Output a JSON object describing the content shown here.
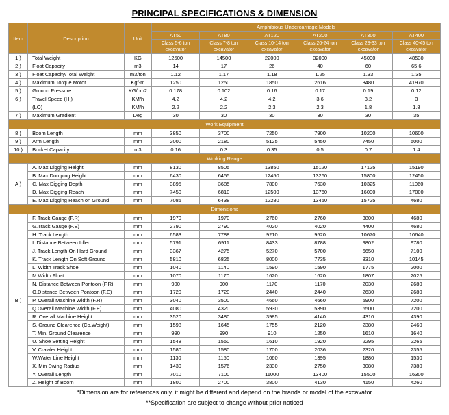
{
  "title": "PRINCIPAL SPECIFICATIONS & DIMENSION",
  "headers": {
    "item": "Item",
    "desc": "Description",
    "unit": "Unit",
    "main": "Amphibious Undercarriage Models",
    "models": [
      "AT50",
      "AT80",
      "AT120",
      "AT200",
      "AT300",
      "AT400"
    ],
    "sub": [
      "Class 5-6 ton excavator",
      "Class 7-8 ton excavator",
      "Class 10-14 ton excavator",
      "Class 20-24 ton excavator",
      "Class 28-33 ton excavator",
      "Class 40-45 ton excavator"
    ]
  },
  "secWork": "Work Equipment",
  "secRange": "Working Range",
  "secDim": "Dimensions",
  "rows1": [
    {
      "n": "1 )",
      "d": "Total Weight",
      "u": "KG",
      "v": [
        "12500",
        "14500",
        "22000",
        "32000",
        "45000",
        "48530"
      ]
    },
    {
      "n": "2 )",
      "d": "Float Capacity",
      "u": "m3",
      "v": [
        "14",
        "17",
        "26",
        "40",
        "60",
        "65.6"
      ]
    },
    {
      "n": "3 )",
      "d": "Float Capacity/Total Weight",
      "u": "m3/ton",
      "v": [
        "1.12",
        "1.17",
        "1.18",
        "1.25",
        "1.33",
        "1.35"
      ]
    },
    {
      "n": "4 )",
      "d": "Maximum Torque Motor",
      "u": "Kgf-m",
      "v": [
        "1250",
        "1250",
        "1850",
        "2616",
        "3480",
        "41970"
      ]
    },
    {
      "n": "5 )",
      "d": "Ground Pressure",
      "u": "KG/cm2",
      "v": [
        "0.178",
        "0.102",
        "0.16",
        "0.17",
        "0.19",
        "0.12"
      ]
    },
    {
      "n": "6 )",
      "d": "Travel Speed (HI)",
      "u": "KM/h",
      "v": [
        "4.2",
        "4.2",
        "4.2",
        "3.6",
        "3.2",
        "3"
      ]
    },
    {
      "n": "",
      "d": "(LO)",
      "u": "KM/h",
      "v": [
        "2.2",
        "2.2",
        "2.3",
        "2.3",
        "1.8",
        "1.8"
      ]
    },
    {
      "n": "7 )",
      "d": "Maximum Gradient",
      "u": "Deg",
      "v": [
        "30",
        "30",
        "30",
        "30",
        "30",
        "35"
      ]
    }
  ],
  "rows2": [
    {
      "n": "8 )",
      "d": "Boom Length",
      "u": "mm",
      "v": [
        "3850",
        "3700",
        "7250",
        "7900",
        "10200",
        "10600"
      ]
    },
    {
      "n": "9 )",
      "d": "Arm Length",
      "u": "mm",
      "v": [
        "2000",
        "2180",
        "5125",
        "5450",
        "7450",
        "5000"
      ]
    },
    {
      "n": "10 )",
      "d": "Bucket Capacity",
      "u": "m3",
      "v": [
        "0.16",
        "0.3",
        "0.35",
        "0.5",
        "0.7",
        "1.4"
      ]
    }
  ],
  "rowsA": [
    {
      "d": "A. Max Digging Height",
      "u": "mm",
      "v": [
        "8130",
        "8505",
        "13850",
        "15120",
        "17125",
        "15190"
      ]
    },
    {
      "d": "B. Max Dumping Height",
      "u": "mm",
      "v": [
        "6430",
        "6455",
        "12450",
        "13260",
        "15800",
        "12450"
      ]
    },
    {
      "d": "C. Max Digging Depth",
      "u": "mm",
      "v": [
        "3895",
        "3685",
        "7800",
        "7630",
        "10325",
        "11060"
      ]
    },
    {
      "d": "D. Max Digging Reach",
      "u": "mm",
      "v": [
        "7450",
        "6810",
        "12500",
        "13760",
        "16000",
        "17000"
      ]
    },
    {
      "d": "E. Max Digging Reach on Ground",
      "u": "mm",
      "v": [
        "7085",
        "6438",
        "12280",
        "13450",
        "15725",
        "4680"
      ]
    }
  ],
  "rowsB": [
    {
      "d": "F. Track Gauge (F.R)",
      "u": "mm",
      "v": [
        "1970",
        "1970",
        "2760",
        "2760",
        "3800",
        "4680"
      ]
    },
    {
      "d": "G.Track Gauge (F.E)",
      "u": "mm",
      "v": [
        "2790",
        "2790",
        "4020",
        "4020",
        "4400",
        "4680"
      ]
    },
    {
      "d": "H. Track Length",
      "u": "mm",
      "v": [
        "6583",
        "7788",
        "9210",
        "9520",
        "10670",
        "10640"
      ]
    },
    {
      "d": "I. Distance Between Idler",
      "u": "mm",
      "v": [
        "5791",
        "6911",
        "8433",
        "8788",
        "9802",
        "9780"
      ]
    },
    {
      "d": "J. Track Length On Hard Ground",
      "u": "mm",
      "v": [
        "3367",
        "4275",
        "5270",
        "5700",
        "6650",
        "7100"
      ]
    },
    {
      "d": "K. Track Length On Soft Ground",
      "u": "mm",
      "v": [
        "5810",
        "6825",
        "8000",
        "7735",
        "8310",
        "10145"
      ]
    },
    {
      "d": "L. Width Track Shoe",
      "u": "mm",
      "v": [
        "1040",
        "1140",
        "1590",
        "1590",
        "1775",
        "2000"
      ]
    },
    {
      "d": "M.Width Float",
      "u": "mm",
      "v": [
        "1070",
        "1170",
        "1620",
        "1620",
        "1807",
        "2025"
      ]
    },
    {
      "d": "N. Distance Between Pontoon (F.R)",
      "u": "mm",
      "v": [
        "900",
        "900",
        "1170",
        "1170",
        "2030",
        "2680"
      ]
    },
    {
      "d": "O.Distance Between Pontoon (F.E)",
      "u": "mm",
      "v": [
        "1720",
        "1720",
        "2440",
        "2440",
        "2630",
        "2680"
      ]
    },
    {
      "d": "P. Overall Machine Width (F.R)",
      "u": "mm",
      "v": [
        "3040",
        "3500",
        "4660",
        "4660",
        "5900",
        "7200"
      ]
    },
    {
      "d": "Q.Overall Machine Width (F.E)",
      "u": "mm",
      "v": [
        "4080",
        "4320",
        "5930",
        "5390",
        "6500",
        "7200"
      ]
    },
    {
      "d": "R. Overall Machine Height",
      "u": "mm",
      "v": [
        "3520",
        "3480",
        "3985",
        "4140",
        "4310",
        "4390"
      ]
    },
    {
      "d": "S. Ground Clearence (Co.Weight)",
      "u": "mm",
      "v": [
        "1598",
        "1645",
        "1755",
        "2120",
        "2380",
        "2460"
      ]
    },
    {
      "d": "T. Min. Ground Clearence",
      "u": "mm",
      "v": [
        "990",
        "990",
        "910",
        "1250",
        "1610",
        "1640"
      ]
    },
    {
      "d": "U. Shoe Setting Height",
      "u": "mm",
      "v": [
        "1548",
        "1550",
        "1610",
        "1920",
        "2295",
        "2265"
      ]
    },
    {
      "d": "V. Crawler Height",
      "u": "mm",
      "v": [
        "1580",
        "1580",
        "1700",
        "2036",
        "2320",
        "2355"
      ]
    },
    {
      "d": "W.Water Line Height",
      "u": "mm",
      "v": [
        "1130",
        "1150",
        "1060",
        "1395",
        "1880",
        "1530"
      ]
    },
    {
      "d": "X. Min Swing Radius",
      "u": "mm",
      "v": [
        "1430",
        "1576",
        "2330",
        "2750",
        "3080",
        "7380"
      ]
    },
    {
      "d": "Y. Overall Length",
      "u": "mm",
      "v": [
        "7010",
        "7100",
        "11000",
        "13400",
        "15500",
        "16300"
      ]
    },
    {
      "d": "Z. Height of Boom",
      "u": "mm",
      "v": [
        "1800",
        "2700",
        "3800",
        "4130",
        "4150",
        "4260"
      ]
    }
  ],
  "foot1": "*Dimension are for references only, it might be different and depend on the brands or model of the excavator",
  "foot2": "**Specification are subject to change without prior noticed",
  "colors": {
    "header": "#c18a2e",
    "headerText": "#ffffff",
    "border": "#999999"
  }
}
